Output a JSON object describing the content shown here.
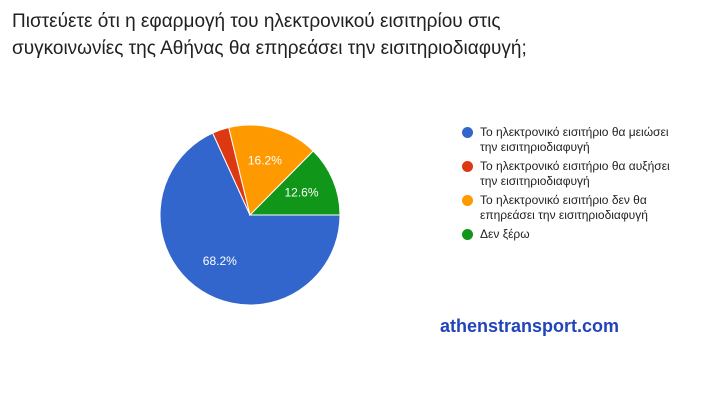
{
  "chart_data": {
    "type": "pie",
    "title": "Πιστεύετε ότι η εφαρμογή του ηλεκτρονικού εισιτηρίου στις συγκοινωνίες της Αθήνας θα επηρεάσει την εισιτηριοδιαφυγή;",
    "categories": [
      "Το ηλεκτρονικό εισιτήριο θα μειώσει την εισιτηριοδιαφυγή",
      "Το ηλεκτρονικό εισιτήριο θα αυξήσει την εισιτηριοδιαφυγή",
      "Το ηλεκτρονικό εισιτήριο δεν θα επηρεάσει την εισιτηριοδιαφυγή",
      "Δεν ξέρω"
    ],
    "values": [
      68.2,
      3.0,
      16.2,
      12.6
    ],
    "value_labels": [
      "68.2%",
      null,
      "16.2%",
      "12.6%"
    ],
    "colors": [
      "#3366cc",
      "#dc3912",
      "#ff9900",
      "#109618"
    ],
    "legend": "right",
    "watermark": "athenstransport.com"
  }
}
